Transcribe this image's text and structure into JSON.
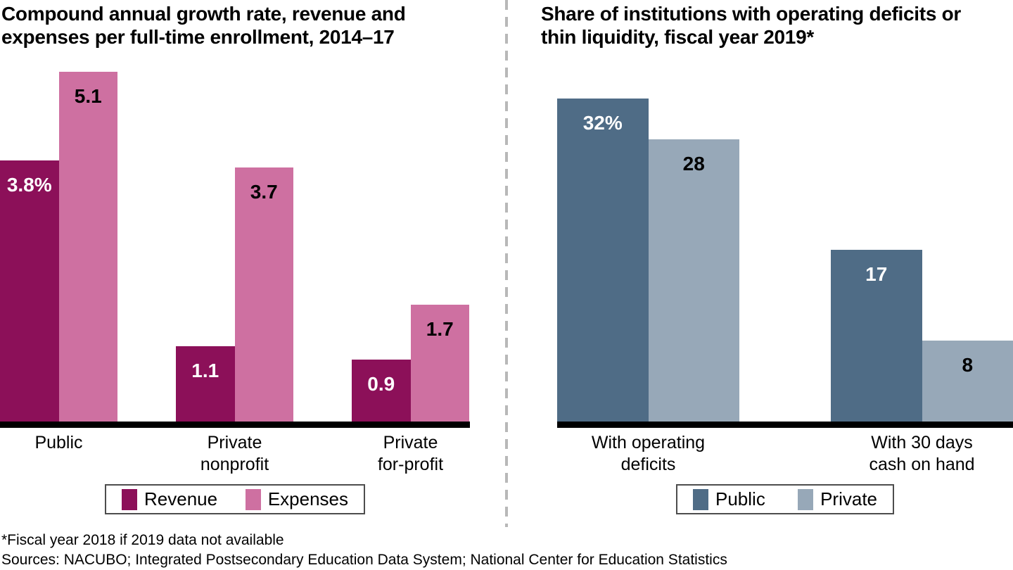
{
  "chart_data": [
    {
      "type": "bar",
      "title": "Compound annual growth rate, revenue and expenses per full-time enrollment, 2014–17",
      "title_lines": [
        "Compound annual growth rate, revenue and",
        "expenses per full-time enrollment, 2014–17"
      ],
      "categories": [
        "Public",
        "Private nonprofit",
        "Private for-profit"
      ],
      "category_label_lines": [
        [
          "Public"
        ],
        [
          "Private",
          "nonprofit"
        ],
        [
          "Private",
          "for-profit"
        ]
      ],
      "series": [
        {
          "name": "Revenue",
          "color": "#8C1059",
          "label_color": "#FFFFFF",
          "values": [
            3.8,
            1.1,
            0.9
          ],
          "labels": [
            "3.8%",
            "1.1",
            "0.9"
          ]
        },
        {
          "name": "Expenses",
          "color": "#CE70A1",
          "label_color": "#000000",
          "values": [
            5.1,
            3.7,
            1.7
          ],
          "labels": [
            "5.1",
            "3.7",
            "1.7"
          ]
        }
      ],
      "xlabel": "",
      "ylabel": "",
      "ylim": [
        0,
        5.3
      ],
      "grid": false,
      "legend_position": "bottom"
    },
    {
      "type": "bar",
      "title": "Share of institutions with operating deficits or thin liquidity, fiscal year 2019*",
      "title_lines": [
        "Share of institutions with operating deficits or",
        "thin liquidity, fiscal year 2019*"
      ],
      "categories": [
        "With operating deficits",
        "With 30 days cash on hand"
      ],
      "category_label_lines": [
        [
          "With operating",
          "deficits"
        ],
        [
          "With 30 days",
          "cash on hand"
        ]
      ],
      "series": [
        {
          "name": "Public",
          "color": "#4F6C86",
          "label_color": "#FFFFFF",
          "values": [
            32,
            17
          ],
          "labels": [
            "32%",
            "17"
          ]
        },
        {
          "name": "Private",
          "color": "#97A8B8",
          "label_color": "#000000",
          "values": [
            28,
            8
          ],
          "labels": [
            "28",
            "8"
          ]
        }
      ],
      "xlabel": "",
      "ylabel": "",
      "ylim": [
        0,
        32
      ],
      "grid": false,
      "legend_position": "bottom"
    }
  ],
  "footer": {
    "note": "*Fiscal year 2018 if 2019 data not available",
    "sources": "Sources: NACUBO; Integrated Postsecondary Education Data System; National Center for Education Statistics"
  },
  "colors": {
    "revenue": "#8C1059",
    "expenses": "#CE70A1",
    "public": "#4F6C86",
    "private": "#97A8B8",
    "axis": "#000000",
    "divider": "#B8B8B8"
  }
}
